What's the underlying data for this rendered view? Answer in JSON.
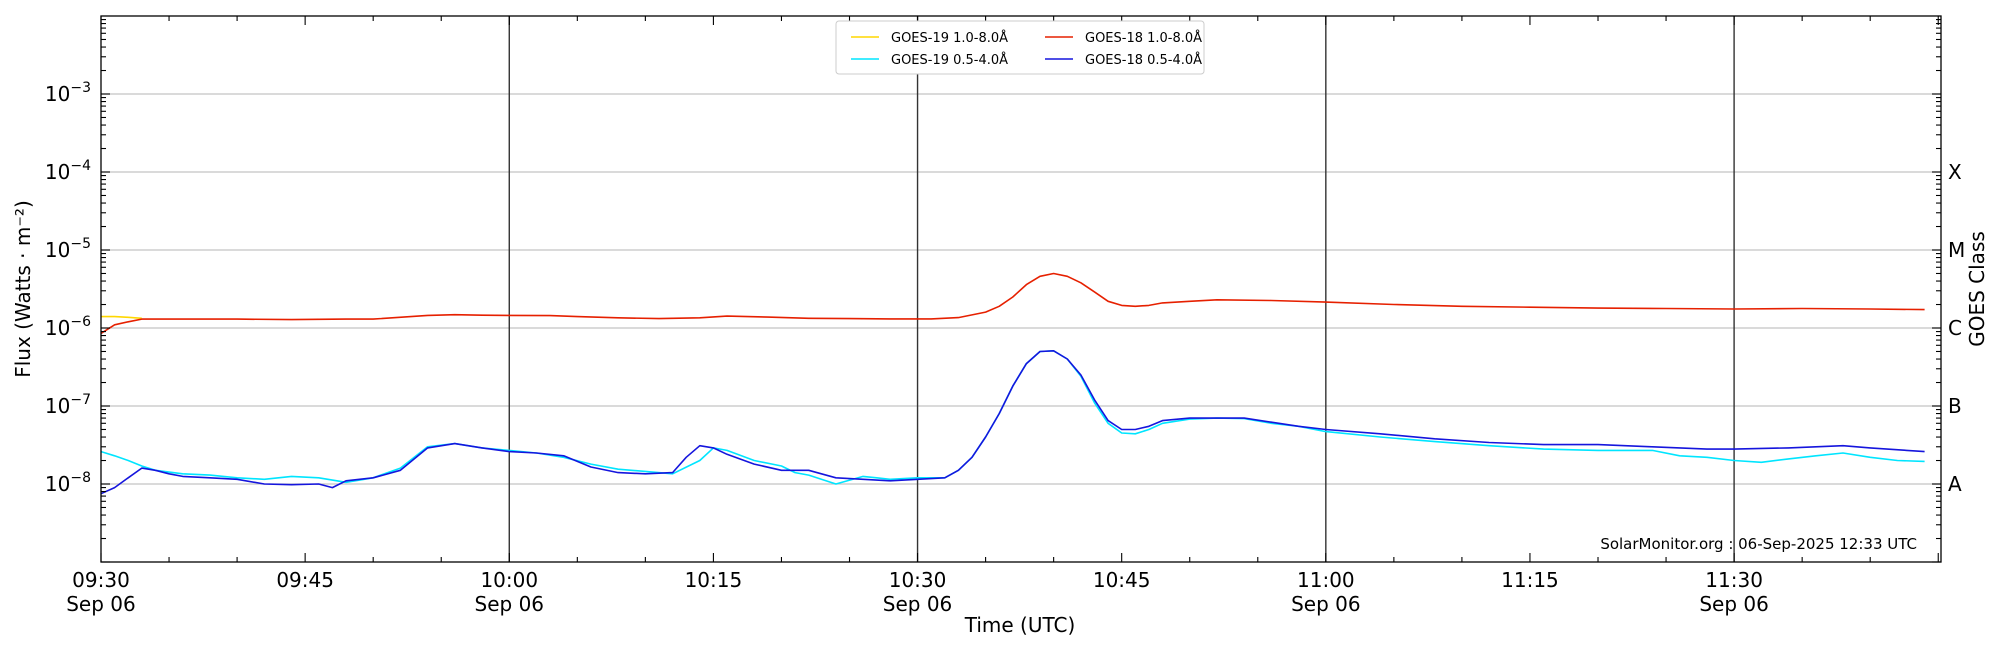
{
  "chart_data": {
    "type": "line",
    "xlabel": "Time (UTC)",
    "ylabel": "Flux (Watts · m⁻²)",
    "y2label": "GOES Class",
    "credit": "SolarMonitor.org : 06-Sep-2025 12:33 UTC",
    "yscale": "log",
    "ylim_log10": [
      -9,
      -2
    ],
    "xlim_min": [
      0,
      135
    ],
    "grid": "horizontal at decades",
    "legend_position": "top-center",
    "x_ticks": [
      {
        "min": 0,
        "line1": "09:30",
        "line2": "Sep 06"
      },
      {
        "min": 15,
        "line1": "09:45",
        "line2": ""
      },
      {
        "min": 30,
        "line1": "10:00",
        "line2": "Sep 06"
      },
      {
        "min": 45,
        "line1": "10:15",
        "line2": ""
      },
      {
        "min": 60,
        "line1": "10:30",
        "line2": "Sep 06"
      },
      {
        "min": 75,
        "line1": "10:45",
        "line2": ""
      },
      {
        "min": 90,
        "line1": "11:00",
        "line2": "Sep 06"
      },
      {
        "min": 105,
        "line1": "11:15",
        "line2": ""
      },
      {
        "min": 120,
        "line1": "11:30",
        "line2": "Sep 06"
      }
    ],
    "vlines_min": [
      30,
      60,
      90,
      120
    ],
    "y_ticks": [
      {
        "exp": -8,
        "label": "10",
        "sup": "−8"
      },
      {
        "exp": -7,
        "label": "10",
        "sup": "−7"
      },
      {
        "exp": -6,
        "label": "10",
        "sup": "−6"
      },
      {
        "exp": -5,
        "label": "10",
        "sup": "−5"
      },
      {
        "exp": -4,
        "label": "10",
        "sup": "−4"
      },
      {
        "exp": -3,
        "label": "10",
        "sup": "−3"
      }
    ],
    "goes_classes": [
      {
        "label": "A",
        "exp": -8
      },
      {
        "label": "B",
        "exp": -7
      },
      {
        "label": "C",
        "exp": -6
      },
      {
        "label": "M",
        "exp": -5
      },
      {
        "label": "X",
        "exp": -4
      }
    ],
    "legend": [
      {
        "label": "GOES-19 1.0-8.0Å",
        "color": "#ffd700"
      },
      {
        "label": "GOES-19 0.5-4.0Å",
        "color": "#00e5ff"
      },
      {
        "label": "GOES-18 1.0-8.0Å",
        "color": "#e62000"
      },
      {
        "label": "GOES-18 0.5-4.0Å",
        "color": "#1515dd"
      }
    ],
    "series": [
      {
        "name": "GOES-19 1.0-8.0Å",
        "color": "#ffd700",
        "x": [
          0,
          1,
          2,
          3
        ],
        "y": [
          1.4e-06,
          1.4e-06,
          1.37e-06,
          1.33e-06
        ]
      },
      {
        "name": "GOES-18 1.0-8.0Å",
        "color": "#e62000",
        "x": [
          0,
          1,
          2,
          3,
          6,
          10,
          14,
          18,
          20,
          24,
          26,
          28,
          30,
          33,
          35,
          38,
          41,
          44,
          46,
          49,
          52,
          55,
          58,
          61,
          63,
          65,
          66,
          67,
          68,
          69,
          70,
          71,
          72,
          73,
          74,
          75,
          76,
          77,
          78,
          80,
          82,
          86,
          90,
          95,
          100,
          105,
          110,
          115,
          120,
          125,
          130,
          134
        ],
        "y": [
          8.5e-07,
          1.1e-06,
          1.2e-06,
          1.3e-06,
          1.3e-06,
          1.3e-06,
          1.28e-06,
          1.3e-06,
          1.3e-06,
          1.45e-06,
          1.48e-06,
          1.46e-06,
          1.45e-06,
          1.44e-06,
          1.4e-06,
          1.35e-06,
          1.32e-06,
          1.35e-06,
          1.42e-06,
          1.38e-06,
          1.33e-06,
          1.32e-06,
          1.31e-06,
          1.31e-06,
          1.36e-06,
          1.6e-06,
          1.9e-06,
          2.5e-06,
          3.6e-06,
          4.6e-06,
          5e-06,
          4.6e-06,
          3.8e-06,
          2.9e-06,
          2.2e-06,
          1.95e-06,
          1.9e-06,
          1.95e-06,
          2.1e-06,
          2.2e-06,
          2.3e-06,
          2.25e-06,
          2.15e-06,
          2e-06,
          1.9e-06,
          1.85e-06,
          1.8e-06,
          1.78e-06,
          1.75e-06,
          1.78e-06,
          1.75e-06,
          1.72e-06
        ]
      },
      {
        "name": "GOES-19 0.5-4.0Å",
        "color": "#00e5ff",
        "x": [
          0,
          1,
          2,
          3,
          4,
          6,
          8,
          10,
          12,
          14,
          16,
          18,
          20,
          22,
          24,
          26,
          28,
          30,
          32,
          34,
          36,
          38,
          40,
          42,
          44,
          45,
          46,
          48,
          50,
          51,
          52,
          54,
          56,
          57,
          58,
          60,
          62,
          63,
          64,
          65,
          66,
          67,
          68,
          69,
          70,
          71,
          72,
          73,
          74,
          75,
          76,
          77,
          78,
          80,
          82,
          84,
          86,
          88,
          90,
          94,
          98,
          102,
          106,
          110,
          114,
          116,
          118,
          120,
          122,
          124,
          126,
          128,
          130,
          132,
          134
        ],
        "y": [
          2.6e-08,
          2.3e-08,
          2e-08,
          1.7e-08,
          1.5e-08,
          1.35e-08,
          1.3e-08,
          1.2e-08,
          1.15e-08,
          1.25e-08,
          1.2e-08,
          1.05e-08,
          1.2e-08,
          1.6e-08,
          3e-08,
          3.3e-08,
          2.9e-08,
          2.7e-08,
          2.5e-08,
          2.2e-08,
          1.8e-08,
          1.55e-08,
          1.45e-08,
          1.35e-08,
          2e-08,
          2.9e-08,
          2.7e-08,
          2e-08,
          1.7e-08,
          1.4e-08,
          1.3e-08,
          1e-08,
          1.25e-08,
          1.2e-08,
          1.15e-08,
          1.2e-08,
          1.2e-08,
          1.5e-08,
          2.2e-08,
          4e-08,
          8e-08,
          1.8e-07,
          3.5e-07,
          5e-07,
          5.1e-07,
          4e-07,
          2.4e-07,
          1.1e-07,
          6e-08,
          4.5e-08,
          4.4e-08,
          5e-08,
          6e-08,
          6.8e-08,
          7e-08,
          6.9e-08,
          6e-08,
          5.5e-08,
          4.7e-08,
          4e-08,
          3.5e-08,
          3.1e-08,
          2.8e-08,
          2.7e-08,
          2.7e-08,
          2.3e-08,
          2.2e-08,
          2e-08,
          1.9e-08,
          2.1e-08,
          2.3e-08,
          2.5e-08,
          2.2e-08,
          2e-08,
          1.95e-08
        ]
      },
      {
        "name": "GOES-18 0.5-4.0Å",
        "color": "#1515dd",
        "x": [
          0,
          1,
          2,
          3,
          4,
          5,
          6,
          8,
          10,
          12,
          14,
          16,
          17,
          18,
          20,
          22,
          24,
          26,
          28,
          30,
          32,
          34,
          36,
          38,
          40,
          42,
          43,
          44,
          45,
          46,
          48,
          50,
          52,
          54,
          56,
          58,
          60,
          62,
          63,
          64,
          65,
          66,
          67,
          68,
          69,
          70,
          71,
          72,
          73,
          74,
          75,
          76,
          77,
          78,
          80,
          82,
          84,
          86,
          88,
          90,
          94,
          98,
          102,
          106,
          110,
          114,
          118,
          120,
          124,
          128,
          130,
          134
        ],
        "y": [
          7.5e-09,
          9e-09,
          1.2e-08,
          1.6e-08,
          1.5e-08,
          1.35e-08,
          1.25e-08,
          1.2e-08,
          1.15e-08,
          1e-08,
          9.8e-09,
          1e-08,
          9e-09,
          1.1e-08,
          1.2e-08,
          1.5e-08,
          2.9e-08,
          3.3e-08,
          2.9e-08,
          2.6e-08,
          2.5e-08,
          2.3e-08,
          1.65e-08,
          1.4e-08,
          1.35e-08,
          1.4e-08,
          2.2e-08,
          3.1e-08,
          2.9e-08,
          2.4e-08,
          1.8e-08,
          1.5e-08,
          1.5e-08,
          1.2e-08,
          1.15e-08,
          1.1e-08,
          1.15e-08,
          1.2e-08,
          1.5e-08,
          2.2e-08,
          4e-08,
          8e-08,
          1.8e-07,
          3.5e-07,
          5e-07,
          5.1e-07,
          4e-07,
          2.5e-07,
          1.2e-07,
          6.5e-08,
          5e-08,
          5e-08,
          5.5e-08,
          6.5e-08,
          7e-08,
          7e-08,
          7e-08,
          6.2e-08,
          5.5e-08,
          5e-08,
          4.4e-08,
          3.8e-08,
          3.4e-08,
          3.2e-08,
          3.2e-08,
          3e-08,
          2.8e-08,
          2.8e-08,
          2.9e-08,
          3.1e-08,
          2.9e-08,
          2.6e-08
        ]
      }
    ]
  }
}
